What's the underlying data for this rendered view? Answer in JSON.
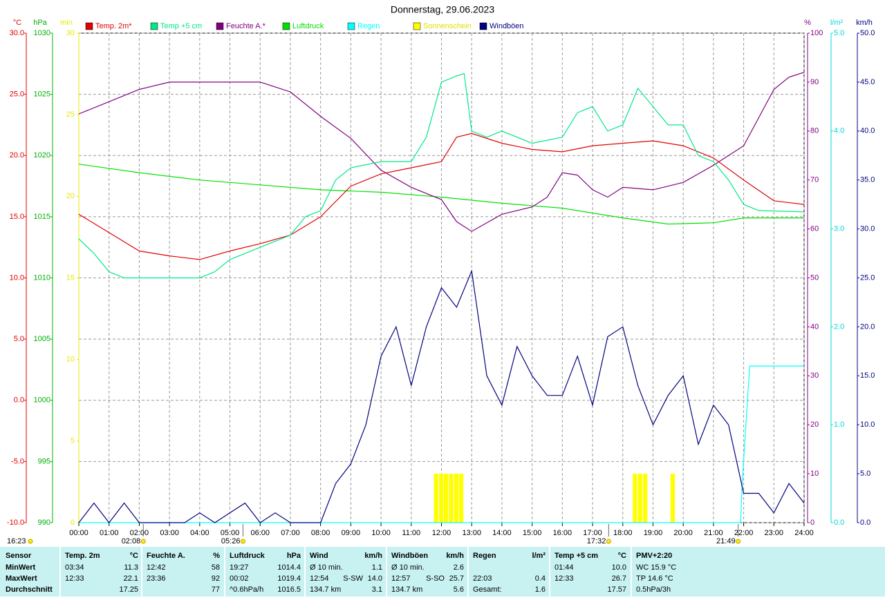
{
  "chart_data": {
    "type": "line",
    "title": "Donnerstag, 29.06.2023",
    "grid": true,
    "xlim": [
      0,
      24
    ],
    "xticks": [
      {
        "value": 0,
        "label": "00:00"
      },
      {
        "value": 1,
        "label": "01:00"
      },
      {
        "value": 2,
        "label": "02:00"
      },
      {
        "value": 3,
        "label": "03:00"
      },
      {
        "value": 4,
        "label": "04:00"
      },
      {
        "value": 5,
        "label": "05:00"
      },
      {
        "value": 6,
        "label": "06:00"
      },
      {
        "value": 7,
        "label": "07:00"
      },
      {
        "value": 8,
        "label": "08:00"
      },
      {
        "value": 9,
        "label": "09:00"
      },
      {
        "value": 10,
        "label": "10:00"
      },
      {
        "value": 11,
        "label": "11:00"
      },
      {
        "value": 12,
        "label": "12:00"
      },
      {
        "value": 13,
        "label": "13:00"
      },
      {
        "value": 14,
        "label": "14:00"
      },
      {
        "value": 15,
        "label": "15:00"
      },
      {
        "value": 16,
        "label": "16:00"
      },
      {
        "value": 17,
        "label": "17:00"
      },
      {
        "value": 18,
        "label": "18:00"
      },
      {
        "value": 19,
        "label": "19:00"
      },
      {
        "value": 20,
        "label": "20:00"
      },
      {
        "value": 21,
        "label": "21:00"
      },
      {
        "value": 22,
        "label": "22:00"
      },
      {
        "value": 23,
        "label": "23:00"
      },
      {
        "value": 24,
        "label": "24:00"
      }
    ],
    "axes": [
      {
        "unit": "°C",
        "color": "#e00000",
        "lim": [
          -10,
          30
        ],
        "ticks": [
          {
            "value": -10,
            "label": "-10.0"
          },
          {
            "value": -5,
            "label": "-5.0"
          },
          {
            "value": 0,
            "label": "0.0"
          },
          {
            "value": 5,
            "label": "5.0"
          },
          {
            "value": 10,
            "label": "10.0"
          },
          {
            "value": 15,
            "label": "15.0"
          },
          {
            "value": 20,
            "label": "20.0"
          },
          {
            "value": 25,
            "label": "25.0"
          },
          {
            "value": 30,
            "label": "30.0"
          }
        ]
      },
      {
        "unit": "hPa",
        "color": "#00b000",
        "lim": [
          990,
          1030
        ],
        "ticks": [
          990,
          995,
          1000,
          1005,
          1010,
          1015,
          1020,
          1025,
          1030
        ]
      },
      {
        "unit": "min",
        "color": "#e8e800",
        "lim": [
          0,
          30
        ],
        "ticks": [
          0,
          5,
          10,
          15,
          20,
          25,
          30
        ]
      },
      {
        "unit": "%",
        "color": "#800080",
        "lim": [
          0,
          100
        ],
        "ticks": [
          0,
          10,
          20,
          30,
          40,
          50,
          60,
          70,
          80,
          90,
          100
        ]
      },
      {
        "unit": "l/m²",
        "color": "#00d8d8",
        "lim": [
          0,
          5
        ],
        "ticks": [
          {
            "value": 0,
            "label": "0.0"
          },
          {
            "value": 1,
            "label": "1.0"
          },
          {
            "value": 2,
            "label": "2.0"
          },
          {
            "value": 3,
            "label": "3.0"
          },
          {
            "value": 4,
            "label": "4.0"
          },
          {
            "value": 5,
            "label": "5.0"
          }
        ]
      },
      {
        "unit": "km/h",
        "color": "#000080",
        "lim": [
          0,
          50
        ],
        "ticks": [
          {
            "value": 0,
            "label": "0.0"
          },
          {
            "value": 5,
            "label": "5.0"
          },
          {
            "value": 10,
            "label": "10.0"
          },
          {
            "value": 15,
            "label": "15.0"
          },
          {
            "value": 20,
            "label": "20.0"
          },
          {
            "value": 25,
            "label": "25.0"
          },
          {
            "value": 30,
            "label": "30.0"
          },
          {
            "value": 35,
            "label": "35.0"
          },
          {
            "value": 40,
            "label": "40.0"
          },
          {
            "value": 45,
            "label": "45.0"
          },
          {
            "value": 50,
            "label": "50.0"
          }
        ]
      }
    ],
    "series": [
      {
        "name": "Temp. 2m*",
        "color": "#e00000",
        "axis": 0,
        "style": "line",
        "x": [
          0,
          1,
          2,
          3,
          4,
          5,
          6,
          7,
          8,
          9,
          10,
          11,
          12,
          12.5,
          13,
          14,
          15,
          16,
          17,
          18,
          19,
          20,
          21,
          22,
          23,
          24
        ],
        "values": [
          15.2,
          13.7,
          12.2,
          11.8,
          11.5,
          12.2,
          12.8,
          13.5,
          15,
          17.5,
          18.5,
          19,
          19.5,
          21.5,
          21.8,
          21,
          20.5,
          20.3,
          20.8,
          21,
          21.2,
          20.8,
          19.8,
          18,
          16.3,
          16.0
        ]
      },
      {
        "name": "Temp +5 cm",
        "color": "#00e888",
        "axis": 0,
        "style": "line",
        "x": [
          0,
          0.5,
          1,
          1.5,
          2,
          3,
          4,
          4.5,
          5,
          6,
          7,
          7.5,
          8,
          8.5,
          9,
          10,
          11,
          11.5,
          12,
          12.5,
          12.75,
          13,
          13.5,
          14,
          15,
          16,
          16.5,
          17,
          17.5,
          18,
          18.5,
          19,
          19.5,
          20,
          20.5,
          21,
          21.5,
          22,
          22.5,
          24
        ],
        "values": [
          13.2,
          12,
          10.5,
          10,
          10,
          10,
          10,
          10.5,
          11.5,
          12.5,
          13.5,
          15,
          15.5,
          18,
          19,
          19.5,
          19.5,
          21.5,
          26,
          26.5,
          26.7,
          22,
          21.5,
          22,
          21,
          21.5,
          23.5,
          24,
          22,
          22.5,
          25.5,
          24,
          22.5,
          22.5,
          20,
          19.5,
          18,
          16,
          15.5,
          15.4
        ]
      },
      {
        "name": "Feuchte A.*",
        "color": "#800080",
        "axis": 3,
        "style": "line",
        "x": [
          0,
          1,
          2,
          3,
          4,
          5,
          6,
          7,
          8,
          9,
          10,
          11,
          12,
          12.5,
          13,
          14,
          15,
          15.5,
          16,
          16.5,
          17,
          17.5,
          18,
          19,
          20,
          21,
          22,
          23,
          23.5,
          24
        ],
        "values": [
          83.5,
          86,
          88.5,
          90,
          90,
          90,
          90,
          88,
          83,
          78.5,
          72,
          68.5,
          66,
          61.5,
          59.5,
          63,
          64.5,
          66.5,
          71.5,
          71,
          68,
          66.5,
          68.5,
          68,
          69.5,
          73,
          77,
          88.5,
          91,
          92
        ]
      },
      {
        "name": "Luftdruck",
        "color": "#00e000",
        "axis": 1,
        "style": "line",
        "x": [
          0,
          2,
          4,
          6,
          8,
          10,
          12,
          14,
          16,
          18,
          19.5,
          21,
          22,
          24
        ],
        "values": [
          1019.3,
          1018.6,
          1018,
          1017.6,
          1017.2,
          1017,
          1016.6,
          1016.1,
          1015.7,
          1014.9,
          1014.4,
          1014.5,
          1014.9,
          1014.9
        ]
      },
      {
        "name": "Regen",
        "color": "#00ffff",
        "axis": 4,
        "style": "line",
        "x": [
          0,
          21.9,
          21.95,
          22.2,
          24
        ],
        "values": [
          0,
          0,
          0.4,
          1.6,
          1.6
        ]
      },
      {
        "name": "Sonnenschein",
        "color": "#ffff00",
        "axis": 2,
        "style": "bar",
        "x": [
          11.75,
          11.92,
          12.08,
          12.25,
          12.42,
          12.58,
          18.33,
          18.5,
          18.67,
          19.58
        ],
        "values": [
          3,
          3,
          3,
          3,
          3,
          3,
          3,
          3,
          3,
          3
        ]
      },
      {
        "name": "Windböen",
        "color": "#000080",
        "axis": 5,
        "style": "line",
        "x": [
          0,
          0.5,
          1,
          1.5,
          2,
          2.5,
          3,
          3.5,
          4,
          4.5,
          5,
          5.5,
          6,
          6.5,
          7,
          7.5,
          8,
          8.5,
          9,
          9.5,
          10,
          10.5,
          11,
          11.5,
          12,
          12.5,
          13,
          13.5,
          14,
          14.5,
          15,
          15.5,
          16,
          16.5,
          17,
          17.5,
          18,
          18.5,
          19,
          19.5,
          20,
          20.5,
          21,
          21.5,
          22,
          22.5,
          23,
          23.5,
          24
        ],
        "values": [
          0,
          2,
          0,
          2,
          0,
          0,
          0,
          0,
          1,
          0,
          1,
          2,
          0,
          1,
          0,
          0,
          0,
          4,
          6,
          10,
          17,
          20,
          14,
          20,
          24,
          22,
          25.7,
          15,
          12,
          18,
          15,
          13,
          13,
          17,
          12,
          19,
          20,
          14,
          10,
          13,
          15,
          8,
          12,
          10,
          3,
          3,
          1,
          4,
          2
        ]
      }
    ],
    "annotations": [
      {
        "x": 2.133,
        "label": "02:08"
      },
      {
        "x": 5.433,
        "label": "05:26"
      },
      {
        "x": 17.533,
        "label": "17:32"
      },
      {
        "x": 21.817,
        "label": "21:49"
      }
    ],
    "corner_label": "16:23"
  },
  "stats_table": {
    "header": [
      [
        "Sensor"
      ],
      [
        "Temp. 2m",
        "°C"
      ],
      [
        "Feuchte A.",
        "%"
      ],
      [
        "Luftdruck",
        "hPa"
      ],
      [
        "Wind",
        "km/h"
      ],
      [
        "Windböen",
        "km/h"
      ],
      [
        "Regen",
        "l/m²"
      ],
      [
        "Temp +5 cm",
        "°C"
      ],
      [
        "PMV+2:20"
      ]
    ],
    "rows": [
      [
        [
          "MinWert"
        ],
        [
          "03:34",
          "11.3"
        ],
        [
          "12:42",
          "58"
        ],
        [
          "19:27",
          "1014.4"
        ],
        [
          "Ø 10 min.",
          "1.1"
        ],
        [
          "Ø 10 min.",
          "2.6"
        ],
        null,
        [
          "01:44",
          "10.0"
        ],
        [
          "WC 15.9 °C"
        ]
      ],
      [
        [
          "MaxWert"
        ],
        [
          "12:33",
          "22.1"
        ],
        [
          "23:36",
          "92"
        ],
        [
          "00:02",
          "1019.4"
        ],
        [
          "12:54",
          "S-SW",
          "14.0"
        ],
        [
          "12:57",
          "S-SO",
          "25.7"
        ],
        [
          "22:03",
          "0.4"
        ],
        [
          "12:33",
          "26.7"
        ],
        [
          "TP 14.6 °C"
        ]
      ],
      [
        [
          "Durchschnitt"
        ],
        [
          null,
          "17.25"
        ],
        [
          null,
          "77"
        ],
        [
          "^0.6hPa/h",
          "1016.5"
        ],
        [
          "134.7 km",
          "3.1"
        ],
        [
          "134.7 km",
          "5.6"
        ],
        [
          "Gesamt:",
          "1.6"
        ],
        [
          null,
          "17.57"
        ],
        [
          "0.5hPa/3h"
        ]
      ]
    ]
  }
}
